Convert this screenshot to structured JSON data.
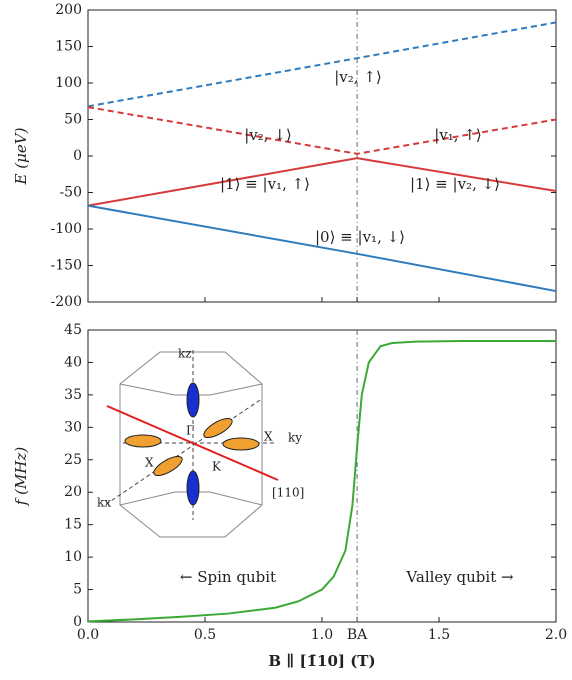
{
  "chart_data": [
    {
      "type": "line",
      "ylabel": "E (μeV)",
      "x": [
        0,
        1.15,
        2
      ],
      "xlim": [
        0,
        2
      ],
      "ylim": [
        -200,
        200
      ],
      "yticks": [
        -200,
        -150,
        -100,
        -50,
        0,
        50,
        100,
        150,
        200
      ],
      "vline": 1.15,
      "series": [
        {
          "color": "#2e7bbd",
          "dashed": true,
          "values": [
            68,
            134,
            183
          ]
        },
        {
          "color": "#d63a3a",
          "dashed": true,
          "values": [
            67,
            3,
            50
          ]
        },
        {
          "color": "#d63a3a",
          "dashed": false,
          "values": [
            -68,
            -3,
            -48
          ]
        },
        {
          "color": "#2e7bbd",
          "dashed": false,
          "values": [
            -68,
            -134,
            -185
          ]
        }
      ],
      "annotations": [
        {
          "text": "|v₂, ↑⟩",
          "color": "#2e7bbd"
        },
        {
          "text": "|v₂, ↓⟩",
          "color": "#d63a3a"
        },
        {
          "text": "|v₁, ↑⟩",
          "color": "#d63a3a"
        },
        {
          "text": "|1⟩ ≡ |v₁, ↑⟩",
          "color": "#d63a3a"
        },
        {
          "text": "|1⟩ ≡ |v₂, ↓⟩",
          "color": "#d63a3a"
        },
        {
          "text": "|0⟩ ≡ |v₁, ↓⟩",
          "color": "#2e7bbd"
        }
      ]
    },
    {
      "type": "line",
      "ylabel": "f (MHz)",
      "xlabel": "B ∥ [1̄10] (T)",
      "x": [
        0,
        0.2,
        0.4,
        0.6,
        0.8,
        0.9,
        1.0,
        1.05,
        1.1,
        1.13,
        1.15,
        1.17,
        1.2,
        1.25,
        1.3,
        1.4,
        1.6,
        2.0
      ],
      "xlim": [
        0,
        2
      ],
      "ylim": [
        0,
        45
      ],
      "xticks": [
        {
          "value": 0,
          "label": "0.0"
        },
        0.5,
        {
          "value": 1,
          "label": "1.0"
        },
        {
          "value": 1.15,
          "label": "BA"
        },
        1.5,
        {
          "value": 2,
          "label": "2.0"
        }
      ],
      "yticks": [
        0,
        5,
        10,
        15,
        20,
        25,
        30,
        35,
        40,
        45
      ],
      "vline": 1.15,
      "series": [
        {
          "color": "#3aaa35",
          "dashed": false,
          "values": [
            0.1,
            0.4,
            0.8,
            1.3,
            2.2,
            3.2,
            5,
            7,
            11,
            18,
            27,
            35,
            40,
            42.5,
            43,
            43.2,
            43.3,
            43.3
          ]
        }
      ],
      "annotations": [
        {
          "text": "← Spin qubit",
          "color": "#222"
        },
        {
          "text": "Valley qubit →",
          "color": "#222"
        }
      ],
      "inset_labels": [
        "kz",
        "ky",
        "kx",
        "Γ",
        "X",
        "X",
        "K",
        "[110]"
      ]
    }
  ]
}
